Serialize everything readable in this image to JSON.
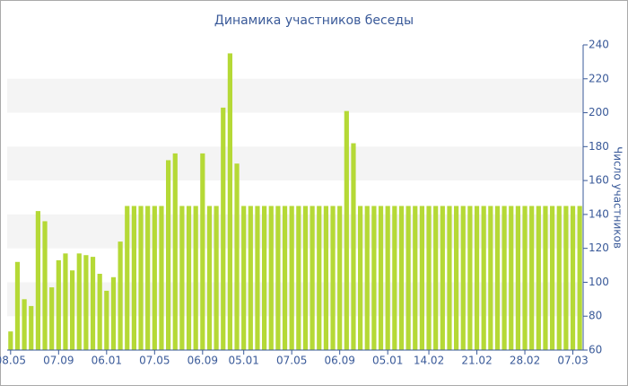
{
  "chart_data": {
    "type": "bar",
    "title": "Динамика участников беседы",
    "y_label": "Число участников",
    "categories": [
      "08.05",
      null,
      null,
      null,
      null,
      null,
      null,
      "07.09",
      null,
      null,
      null,
      null,
      null,
      null,
      "06.01",
      null,
      null,
      null,
      null,
      null,
      null,
      "07.05",
      null,
      null,
      null,
      null,
      null,
      null,
      "06.09",
      null,
      null,
      null,
      null,
      null,
      "05.01",
      null,
      null,
      null,
      null,
      null,
      null,
      "07.05",
      null,
      null,
      null,
      null,
      null,
      null,
      "06.09",
      null,
      null,
      null,
      null,
      null,
      null,
      "05.01",
      null,
      null,
      null,
      null,
      null,
      "14.02",
      null,
      null,
      null,
      null,
      null,
      null,
      "21.02",
      null,
      null,
      null,
      null,
      null,
      null,
      "28.02",
      null,
      null,
      null,
      null,
      null,
      null,
      "07.03",
      null
    ],
    "values": [
      71,
      112,
      90,
      86,
      142,
      136,
      97,
      113,
      117,
      107,
      117,
      116,
      115,
      105,
      95,
      103,
      124,
      145,
      145,
      145,
      145,
      145,
      145,
      172,
      176,
      145,
      145,
      145,
      176,
      145,
      145,
      203,
      235,
      170,
      145,
      145,
      145,
      145,
      145,
      145,
      145,
      145,
      145,
      145,
      145,
      145,
      145,
      145,
      145,
      201,
      182,
      145,
      145,
      145,
      145,
      145,
      145,
      145,
      145,
      145,
      145,
      145,
      145,
      145,
      145,
      145,
      145,
      145,
      145,
      145,
      145,
      145,
      145,
      145,
      145,
      145,
      145,
      145,
      145,
      145,
      145,
      145,
      145,
      145
    ],
    "color": "#b5d936",
    "ylim": [
      60,
      240
    ],
    "yticks": [
      60,
      80,
      100,
      120,
      140,
      160,
      180,
      200,
      220,
      240
    ],
    "grid": "bands",
    "y_axis_side": "right"
  }
}
